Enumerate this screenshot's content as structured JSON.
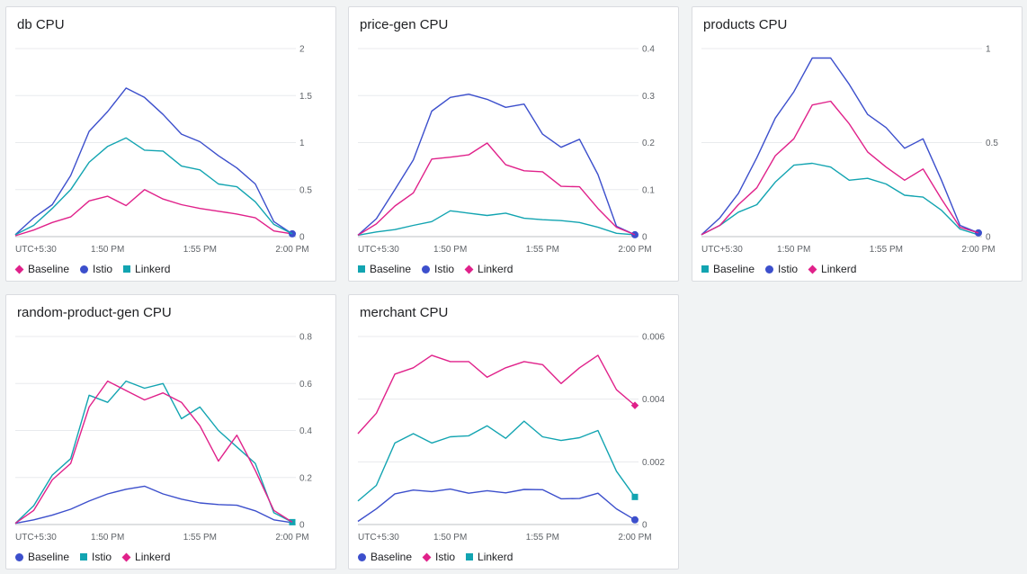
{
  "colors": {
    "pink": "#e0218a",
    "blue": "#3c4fcc",
    "teal": "#12a4b1",
    "grid": "#e8eaed",
    "axis_text": "#5f6368"
  },
  "chart_data": [
    {
      "id": "db",
      "type": "line",
      "title": "db CPU",
      "x_labels": [
        "UTC+5:30",
        "1:50 PM",
        "1:55 PM",
        "2:00 PM"
      ],
      "x_label_positions": [
        0,
        5,
        10,
        15
      ],
      "x": [
        0,
        1,
        2,
        3,
        4,
        5,
        6,
        7,
        8,
        9,
        10,
        11,
        12,
        13,
        14,
        15
      ],
      "ylim": [
        0,
        2
      ],
      "y_ticks": [
        0,
        0.5,
        1,
        1.5,
        2
      ],
      "y_tick_labels": [
        "0",
        "0.5",
        "1",
        "1.5",
        "2"
      ],
      "series": [
        {
          "name": "Baseline",
          "color": "pink",
          "marker": "diamond",
          "values": [
            0.01,
            0.07,
            0.15,
            0.21,
            0.38,
            0.43,
            0.33,
            0.5,
            0.4,
            0.34,
            0.3,
            0.27,
            0.24,
            0.2,
            0.06,
            0.03
          ],
          "end_marker": false
        },
        {
          "name": "Istio",
          "color": "blue",
          "marker": "circle",
          "values": [
            0.02,
            0.2,
            0.34,
            0.65,
            1.12,
            1.33,
            1.58,
            1.48,
            1.3,
            1.09,
            1.01,
            0.86,
            0.73,
            0.56,
            0.16,
            0.03
          ],
          "end_marker": true
        },
        {
          "name": "Linkerd",
          "color": "teal",
          "marker": "square",
          "values": [
            0.02,
            0.12,
            0.3,
            0.5,
            0.79,
            0.96,
            1.05,
            0.92,
            0.91,
            0.75,
            0.71,
            0.56,
            0.53,
            0.37,
            0.13,
            0.03
          ],
          "end_marker": false
        }
      ]
    },
    {
      "id": "price-gen",
      "type": "line",
      "title": "price-gen CPU",
      "x_labels": [
        "UTC+5:30",
        "1:50 PM",
        "1:55 PM",
        "2:00 PM"
      ],
      "x_label_positions": [
        0,
        5,
        10,
        15
      ],
      "x": [
        0,
        1,
        2,
        3,
        4,
        5,
        6,
        7,
        8,
        9,
        10,
        11,
        12,
        13,
        14,
        15
      ],
      "ylim": [
        0,
        0.4
      ],
      "y_ticks": [
        0,
        0.1,
        0.2,
        0.3,
        0.4
      ],
      "y_tick_labels": [
        "0",
        "0.1",
        "0.2",
        "0.3",
        "0.4"
      ],
      "series": [
        {
          "name": "Baseline",
          "color": "teal",
          "marker": "square",
          "values": [
            0.003,
            0.01,
            0.015,
            0.024,
            0.032,
            0.055,
            0.05,
            0.045,
            0.05,
            0.039,
            0.036,
            0.034,
            0.03,
            0.02,
            0.007,
            0.004
          ],
          "end_marker": false
        },
        {
          "name": "Istio",
          "color": "blue",
          "marker": "circle",
          "values": [
            0.003,
            0.038,
            0.1,
            0.163,
            0.267,
            0.296,
            0.303,
            0.292,
            0.275,
            0.282,
            0.218,
            0.19,
            0.207,
            0.132,
            0.022,
            0.004
          ],
          "end_marker": true
        },
        {
          "name": "Linkerd",
          "color": "pink",
          "marker": "diamond",
          "values": [
            0.003,
            0.027,
            0.065,
            0.093,
            0.165,
            0.169,
            0.174,
            0.199,
            0.153,
            0.14,
            0.138,
            0.107,
            0.106,
            0.06,
            0.02,
            0.004
          ],
          "end_marker": false
        }
      ]
    },
    {
      "id": "products",
      "type": "line",
      "title": "products CPU",
      "x_labels": [
        "UTC+5:30",
        "1:50 PM",
        "1:55 PM",
        "2:00 PM"
      ],
      "x_label_positions": [
        0,
        5,
        10,
        15
      ],
      "x": [
        0,
        1,
        2,
        3,
        4,
        5,
        6,
        7,
        8,
        9,
        10,
        11,
        12,
        13,
        14,
        15
      ],
      "ylim": [
        0,
        1
      ],
      "y_ticks": [
        0,
        0.5,
        1
      ],
      "y_tick_labels": [
        "0",
        "0.5",
        "1"
      ],
      "series": [
        {
          "name": "Baseline",
          "color": "teal",
          "marker": "square",
          "values": [
            0.01,
            0.06,
            0.13,
            0.17,
            0.29,
            0.38,
            0.39,
            0.37,
            0.3,
            0.31,
            0.28,
            0.22,
            0.21,
            0.14,
            0.04,
            0.01
          ],
          "end_marker": false
        },
        {
          "name": "Istio",
          "color": "blue",
          "marker": "circle",
          "values": [
            0.01,
            0.1,
            0.23,
            0.42,
            0.63,
            0.77,
            0.95,
            0.95,
            0.81,
            0.65,
            0.58,
            0.47,
            0.52,
            0.3,
            0.06,
            0.02
          ],
          "end_marker": true
        },
        {
          "name": "Linkerd",
          "color": "pink",
          "marker": "diamond",
          "values": [
            0.01,
            0.06,
            0.17,
            0.26,
            0.43,
            0.52,
            0.7,
            0.72,
            0.6,
            0.45,
            0.37,
            0.3,
            0.36,
            0.2,
            0.05,
            0.02
          ],
          "end_marker": false
        }
      ]
    },
    {
      "id": "random-product-gen",
      "type": "line",
      "title": "random-product-gen CPU",
      "x_labels": [
        "UTC+5:30",
        "1:50 PM",
        "1:55 PM",
        "2:00 PM"
      ],
      "x_label_positions": [
        0,
        5,
        10,
        15
      ],
      "x": [
        0,
        1,
        2,
        3,
        4,
        5,
        6,
        7,
        8,
        9,
        10,
        11,
        12,
        13,
        14,
        15
      ],
      "ylim": [
        0,
        0.8
      ],
      "y_ticks": [
        0,
        0.2,
        0.4,
        0.6,
        0.8
      ],
      "y_tick_labels": [
        "0",
        "0.2",
        "0.4",
        "0.6",
        "0.8"
      ],
      "series": [
        {
          "name": "Baseline",
          "color": "blue",
          "marker": "circle",
          "values": [
            0.005,
            0.02,
            0.04,
            0.065,
            0.1,
            0.13,
            0.15,
            0.163,
            0.13,
            0.108,
            0.092,
            0.085,
            0.082,
            0.058,
            0.02,
            0.008
          ],
          "end_marker": false
        },
        {
          "name": "Istio",
          "color": "teal",
          "marker": "square",
          "values": [
            0.005,
            0.08,
            0.21,
            0.28,
            0.55,
            0.52,
            0.61,
            0.58,
            0.6,
            0.45,
            0.5,
            0.4,
            0.33,
            0.26,
            0.05,
            0.01
          ],
          "end_marker": true
        },
        {
          "name": "Linkerd",
          "color": "pink",
          "marker": "diamond",
          "values": [
            0.005,
            0.06,
            0.19,
            0.26,
            0.5,
            0.61,
            0.57,
            0.53,
            0.56,
            0.52,
            0.42,
            0.27,
            0.38,
            0.23,
            0.06,
            0.01
          ],
          "end_marker": false
        }
      ]
    },
    {
      "id": "merchant",
      "type": "line",
      "title": "merchant CPU",
      "x_labels": [
        "UTC+5:30",
        "1:50 PM",
        "1:55 PM",
        "2:00 PM"
      ],
      "x_label_positions": [
        0,
        5,
        10,
        15
      ],
      "x": [
        0,
        1,
        2,
        3,
        4,
        5,
        6,
        7,
        8,
        9,
        10,
        11,
        12,
        13,
        14,
        15
      ],
      "ylim": [
        0,
        0.006
      ],
      "y_ticks": [
        0,
        0.002,
        0.004,
        0.006
      ],
      "y_tick_labels": [
        "0",
        "0.002",
        "0.004",
        "0.006"
      ],
      "series": [
        {
          "name": "Baseline",
          "color": "blue",
          "marker": "circle",
          "values": [
            0.0001,
            0.0005,
            0.00098,
            0.0011,
            0.00105,
            0.00113,
            0.001,
            0.00108,
            0.00101,
            0.00112,
            0.00111,
            0.00082,
            0.00083,
            0.001,
            0.0005,
            0.00015
          ],
          "end_marker": true
        },
        {
          "name": "Istio",
          "color": "pink",
          "marker": "diamond",
          "values": [
            0.0029,
            0.00355,
            0.0048,
            0.005,
            0.0054,
            0.0052,
            0.0052,
            0.0047,
            0.005,
            0.0052,
            0.0051,
            0.0045,
            0.005,
            0.0054,
            0.0043,
            0.0038
          ],
          "end_marker": true
        },
        {
          "name": "Linkerd",
          "color": "teal",
          "marker": "square",
          "values": [
            0.00075,
            0.00125,
            0.0026,
            0.0029,
            0.0026,
            0.0028,
            0.00283,
            0.00315,
            0.00275,
            0.0033,
            0.0028,
            0.00268,
            0.00277,
            0.003,
            0.0017,
            0.00088
          ],
          "end_marker": true
        }
      ]
    }
  ]
}
